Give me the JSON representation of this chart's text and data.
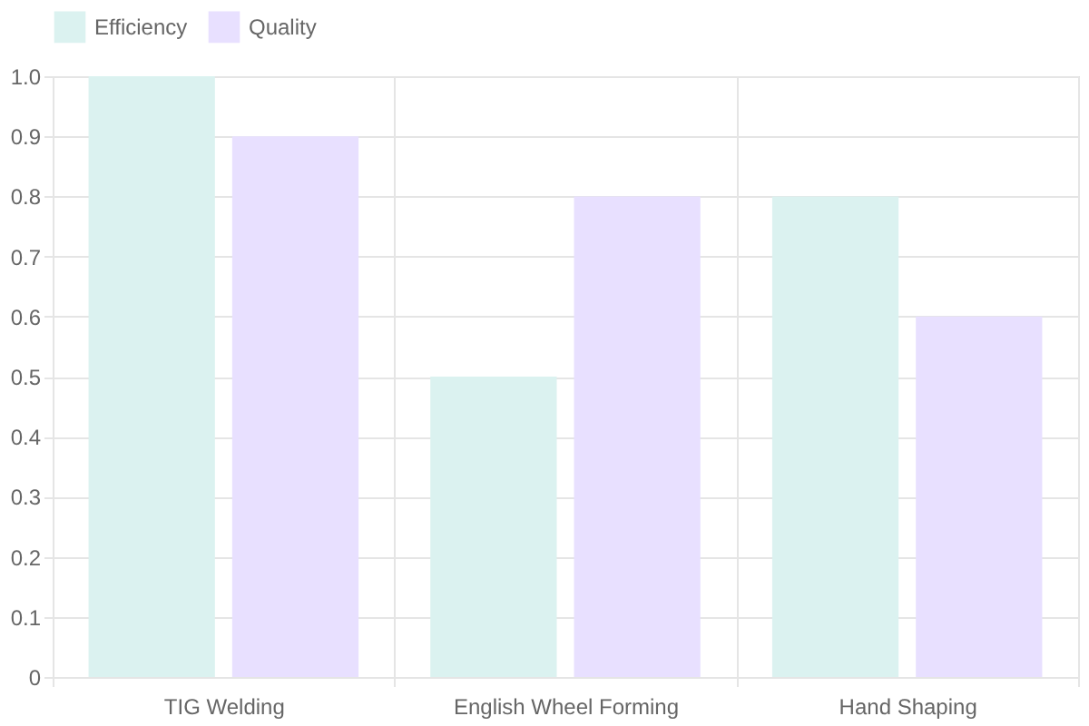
{
  "chart_data": {
    "type": "bar",
    "categories": [
      "TIG Welding",
      "English Wheel Forming",
      "Hand Shaping"
    ],
    "series": [
      {
        "name": "Efficiency",
        "color": "#dbf2f0",
        "values": [
          1.0,
          0.5,
          0.8
        ]
      },
      {
        "name": "Quality",
        "color": "#e8e0ff",
        "values": [
          0.9,
          0.8,
          0.6
        ]
      }
    ],
    "ylim": [
      0,
      1
    ],
    "yticks": [
      0,
      0.1,
      0.2,
      0.3,
      0.4,
      0.5,
      0.6,
      0.7,
      0.8,
      0.9,
      {
        "value": 1,
        "label": "1.0"
      }
    ],
    "grid": true,
    "legend": "top"
  }
}
